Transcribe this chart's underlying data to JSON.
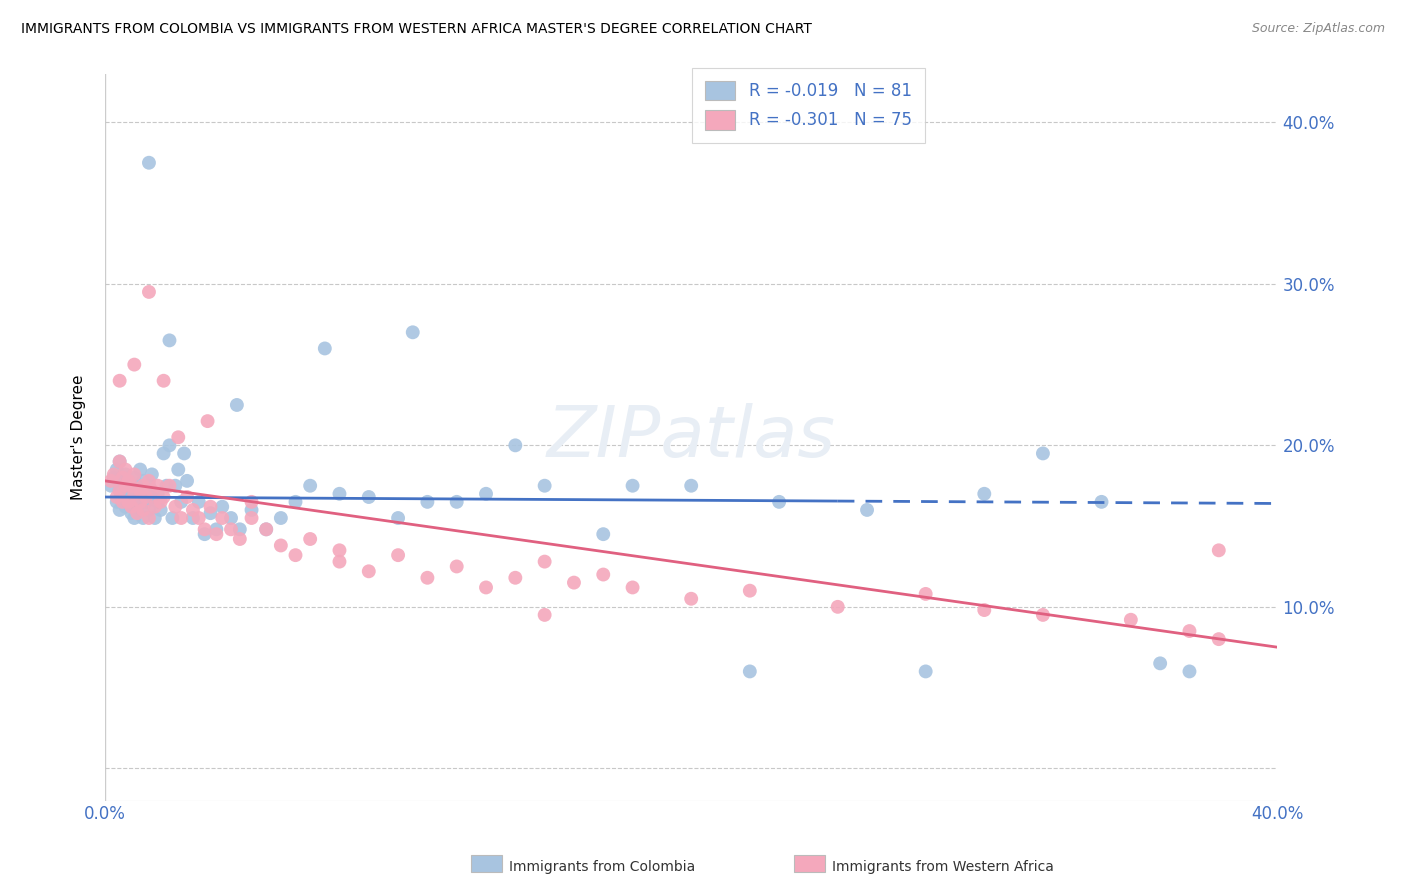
{
  "title": "IMMIGRANTS FROM COLOMBIA VS IMMIGRANTS FROM WESTERN AFRICA MASTER'S DEGREE CORRELATION CHART",
  "source": "Source: ZipAtlas.com",
  "ylabel": "Master's Degree",
  "yticks": [
    0.0,
    0.1,
    0.2,
    0.3,
    0.4
  ],
  "ytick_labels": [
    "",
    "10.0%",
    "20.0%",
    "30.0%",
    "40.0%"
  ],
  "xticks": [
    0.0,
    0.05,
    0.1,
    0.15,
    0.2,
    0.25,
    0.3,
    0.35,
    0.4
  ],
  "xlim": [
    0.0,
    0.4
  ],
  "ylim": [
    -0.02,
    0.43
  ],
  "colombia_color": "#a8c4e0",
  "western_africa_color": "#f4a8bc",
  "colombia_line_color": "#4472c4",
  "western_africa_line_color": "#e06080",
  "colombia_R": -0.019,
  "colombia_N": 81,
  "western_africa_R": -0.301,
  "western_africa_N": 75,
  "colombia_scatter_x": [
    0.002,
    0.003,
    0.004,
    0.004,
    0.005,
    0.005,
    0.005,
    0.006,
    0.006,
    0.007,
    0.007,
    0.008,
    0.008,
    0.009,
    0.009,
    0.01,
    0.01,
    0.01,
    0.011,
    0.011,
    0.012,
    0.012,
    0.013,
    0.013,
    0.014,
    0.014,
    0.015,
    0.015,
    0.016,
    0.016,
    0.017,
    0.018,
    0.018,
    0.019,
    0.02,
    0.021,
    0.022,
    0.023,
    0.024,
    0.025,
    0.026,
    0.027,
    0.028,
    0.03,
    0.032,
    0.034,
    0.036,
    0.038,
    0.04,
    0.043,
    0.046,
    0.05,
    0.055,
    0.06,
    0.065,
    0.07,
    0.08,
    0.09,
    0.1,
    0.11,
    0.12,
    0.13,
    0.15,
    0.17,
    0.2,
    0.23,
    0.26,
    0.3,
    0.34,
    0.37,
    0.022,
    0.045,
    0.075,
    0.105,
    0.14,
    0.18,
    0.22,
    0.28,
    0.32,
    0.36,
    0.015
  ],
  "colombia_scatter_y": [
    0.175,
    0.18,
    0.165,
    0.185,
    0.172,
    0.16,
    0.19,
    0.168,
    0.178,
    0.162,
    0.182,
    0.17,
    0.176,
    0.158,
    0.172,
    0.165,
    0.18,
    0.155,
    0.175,
    0.162,
    0.168,
    0.185,
    0.155,
    0.178,
    0.165,
    0.172,
    0.16,
    0.175,
    0.168,
    0.182,
    0.155,
    0.17,
    0.165,
    0.16,
    0.195,
    0.175,
    0.2,
    0.155,
    0.175,
    0.185,
    0.165,
    0.195,
    0.178,
    0.155,
    0.165,
    0.145,
    0.158,
    0.148,
    0.162,
    0.155,
    0.148,
    0.16,
    0.148,
    0.155,
    0.165,
    0.175,
    0.17,
    0.168,
    0.155,
    0.165,
    0.165,
    0.17,
    0.175,
    0.145,
    0.175,
    0.165,
    0.16,
    0.17,
    0.165,
    0.06,
    0.265,
    0.225,
    0.26,
    0.27,
    0.2,
    0.175,
    0.06,
    0.06,
    0.195,
    0.065,
    0.375
  ],
  "western_africa_scatter_x": [
    0.002,
    0.003,
    0.004,
    0.005,
    0.005,
    0.006,
    0.006,
    0.007,
    0.007,
    0.008,
    0.008,
    0.009,
    0.009,
    0.01,
    0.01,
    0.011,
    0.012,
    0.012,
    0.013,
    0.013,
    0.014,
    0.015,
    0.015,
    0.016,
    0.017,
    0.018,
    0.019,
    0.02,
    0.022,
    0.024,
    0.026,
    0.028,
    0.03,
    0.032,
    0.034,
    0.036,
    0.038,
    0.04,
    0.043,
    0.046,
    0.05,
    0.055,
    0.06,
    0.065,
    0.07,
    0.08,
    0.09,
    0.1,
    0.11,
    0.12,
    0.13,
    0.14,
    0.15,
    0.16,
    0.17,
    0.18,
    0.2,
    0.22,
    0.25,
    0.28,
    0.3,
    0.32,
    0.35,
    0.37,
    0.38,
    0.005,
    0.01,
    0.015,
    0.02,
    0.025,
    0.035,
    0.05,
    0.08,
    0.15,
    0.38
  ],
  "western_africa_scatter_y": [
    0.178,
    0.182,
    0.168,
    0.19,
    0.172,
    0.18,
    0.165,
    0.175,
    0.185,
    0.165,
    0.178,
    0.162,
    0.175,
    0.17,
    0.182,
    0.158,
    0.172,
    0.165,
    0.175,
    0.16,
    0.168,
    0.178,
    0.155,
    0.172,
    0.162,
    0.175,
    0.165,
    0.168,
    0.175,
    0.162,
    0.155,
    0.168,
    0.16,
    0.155,
    0.148,
    0.162,
    0.145,
    0.155,
    0.148,
    0.142,
    0.155,
    0.148,
    0.138,
    0.132,
    0.142,
    0.128,
    0.122,
    0.132,
    0.118,
    0.125,
    0.112,
    0.118,
    0.128,
    0.115,
    0.12,
    0.112,
    0.105,
    0.11,
    0.1,
    0.108,
    0.098,
    0.095,
    0.092,
    0.085,
    0.08,
    0.24,
    0.25,
    0.295,
    0.24,
    0.205,
    0.215,
    0.165,
    0.135,
    0.095,
    0.135
  ]
}
